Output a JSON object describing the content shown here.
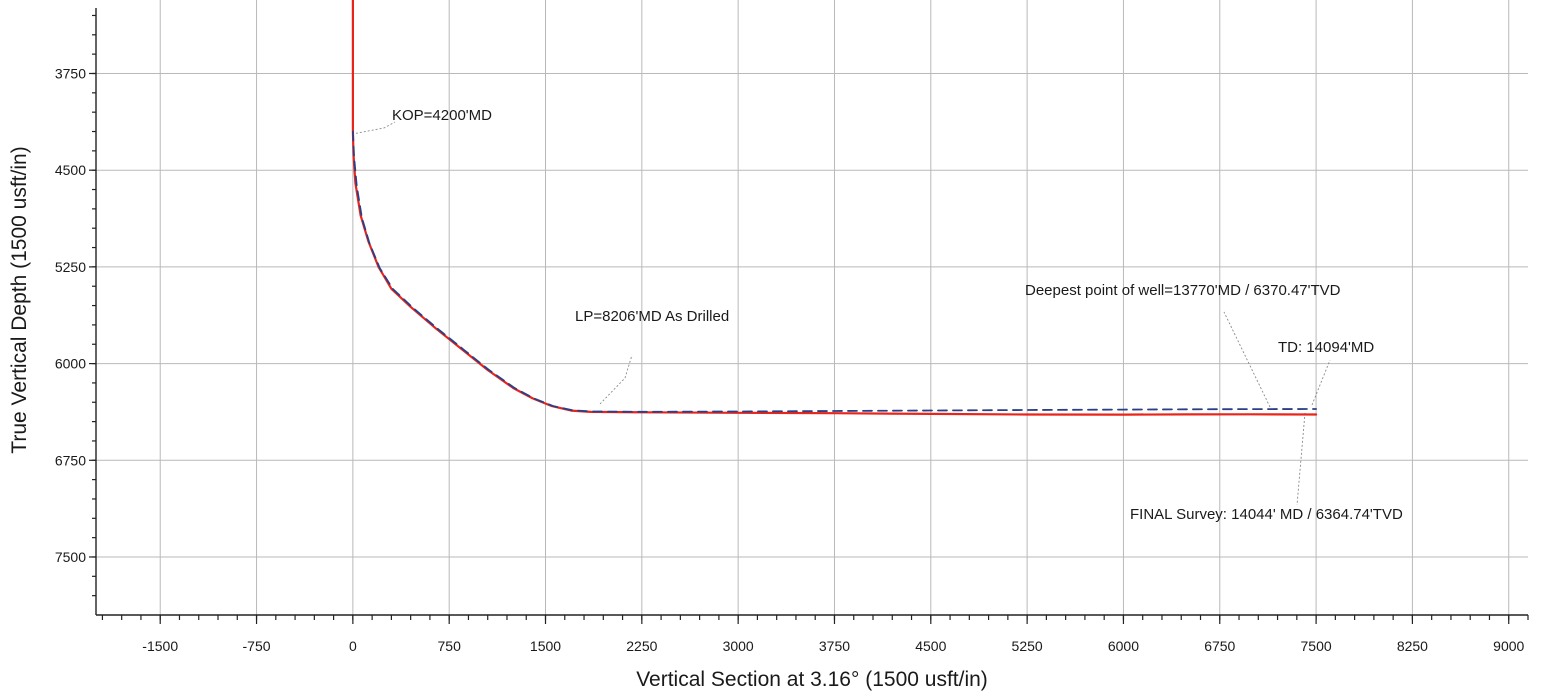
{
  "chart_data": {
    "type": "line",
    "xlabel": "Vertical Section at 3.16° (1500 usft/in)",
    "ylabel": "True Vertical Depth (1500 usft/in)",
    "xlim": [
      -2000,
      9150
    ],
    "ylim": [
      3180,
      7950
    ],
    "y_inverted": true,
    "grid": true,
    "x_ticks": [
      -1500,
      -750,
      0,
      750,
      1500,
      2250,
      3000,
      3750,
      4500,
      5250,
      6000,
      6750,
      7500,
      8250,
      9000
    ],
    "y_ticks": [
      3750,
      4500,
      5250,
      6000,
      6750,
      7500
    ],
    "series": [
      {
        "color": "#e8241b",
        "style": "solid",
        "x": [
          0,
          0,
          0,
          5,
          20,
          60,
          120,
          200,
          300,
          450,
          650,
          850,
          1050,
          1250,
          1400,
          1550,
          1700,
          1850,
          2250,
          3000,
          3750,
          4500,
          5250,
          6000,
          6500,
          7000,
          7500
        ],
        "y": [
          3180,
          3600,
          4200,
          4380,
          4600,
          4850,
          5050,
          5250,
          5420,
          5560,
          5730,
          5890,
          6050,
          6190,
          6270,
          6330,
          6365,
          6375,
          6378,
          6382,
          6385,
          6390,
          6395,
          6396,
          6394,
          6393,
          6395
        ]
      },
      {
        "color": "#2b3f86",
        "style": "dashed",
        "x": [
          0,
          10,
          30,
          70,
          130,
          210,
          310,
          460,
          660,
          860,
          1060,
          1260,
          1410,
          1560,
          1710,
          1860,
          2250,
          3000,
          3750,
          4500,
          5250,
          6000,
          6750,
          7500
        ],
        "y": [
          4200,
          4400,
          4620,
          4870,
          5070,
          5260,
          5420,
          5560,
          5730,
          5890,
          6050,
          6190,
          6270,
          6330,
          6362,
          6372,
          6374,
          6372,
          6368,
          6364,
          6360,
          6357,
          6354,
          6352
        ]
      }
    ],
    "annotations": [
      {
        "text": "KOP=4200'MD"
      },
      {
        "text": "LP=8206'MD As Drilled"
      },
      {
        "text": "Deepest point of well=13770'MD / 6370.47'TVD"
      },
      {
        "text": "TD: 14094'MD"
      },
      {
        "text": "FINAL Survey: 14044' MD / 6364.74'TVD"
      }
    ]
  }
}
